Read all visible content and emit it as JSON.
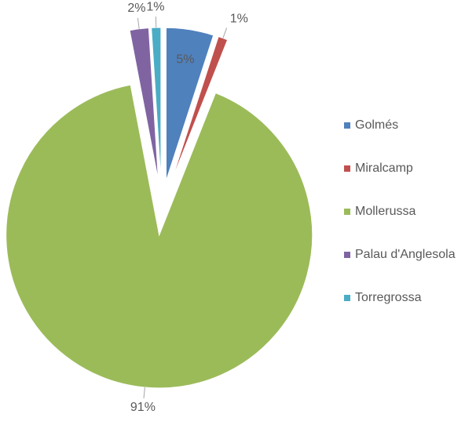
{
  "chart_data": {
    "type": "pie",
    "categories": [
      "Golmés",
      "Miralcamp",
      "Mollerussa",
      "Palau d'Anglesola",
      "Torregrossa"
    ],
    "values": [
      5,
      1,
      91,
      2,
      1
    ],
    "value_labels": [
      "5%",
      "1%",
      "91%",
      "2%",
      "1%"
    ],
    "colors": [
      "#4f81bd",
      "#c0504d",
      "#9bbb59",
      "#8064a2",
      "#4bacc6"
    ],
    "exploded": true,
    "legend": "right"
  }
}
